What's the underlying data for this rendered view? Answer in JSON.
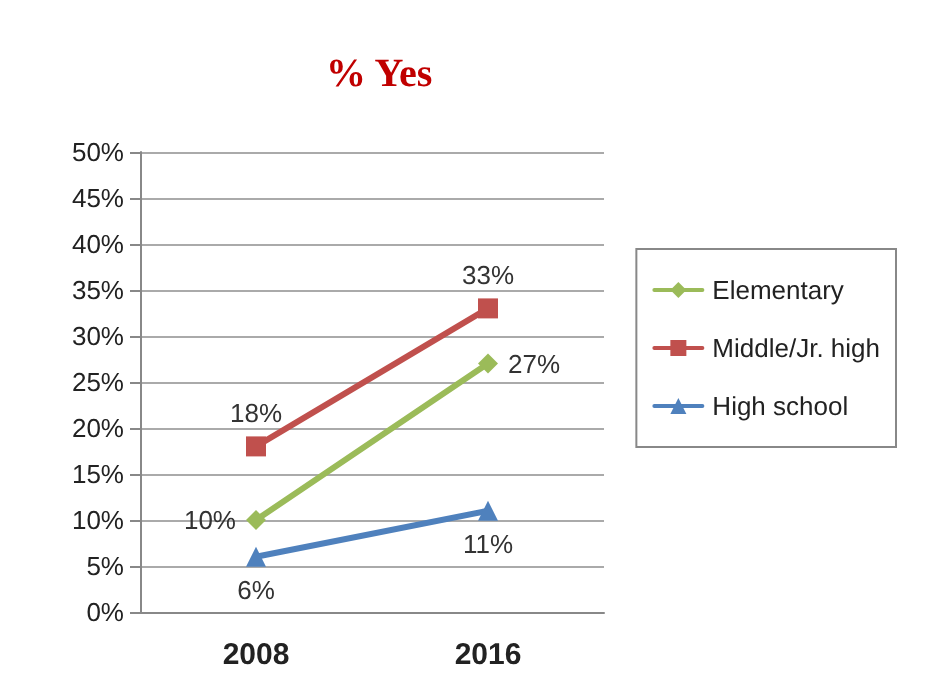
{
  "chart_data": {
    "type": "line",
    "title": "% Yes",
    "categories": [
      "2008",
      "2016"
    ],
    "series": [
      {
        "name": "Elementary",
        "color": "#9bbb59",
        "marker": "diamond",
        "values": [
          10,
          27
        ],
        "value_labels": [
          "10%",
          "27%"
        ]
      },
      {
        "name": "Middle/Jr. high",
        "color": "#c0504d",
        "marker": "square",
        "values": [
          18,
          33
        ],
        "value_labels": [
          "18%",
          "33%"
        ]
      },
      {
        "name": "High school",
        "color": "#4f81bd",
        "marker": "triangle",
        "values": [
          6,
          11
        ],
        "value_labels": [
          "6%",
          "11%"
        ]
      }
    ],
    "ylim": [
      0,
      50
    ],
    "yticks": [
      {
        "value": 0,
        "label": "0%"
      },
      {
        "value": 5,
        "label": "5%"
      },
      {
        "value": 10,
        "label": "10%"
      },
      {
        "value": 15,
        "label": "15%"
      },
      {
        "value": 20,
        "label": "20%"
      },
      {
        "value": 25,
        "label": "25%"
      },
      {
        "value": 30,
        "label": "30%"
      },
      {
        "value": 35,
        "label": "35%"
      },
      {
        "value": 40,
        "label": "40%"
      },
      {
        "value": 45,
        "label": "45%"
      },
      {
        "value": 50,
        "label": "50%"
      }
    ],
    "grid": "y",
    "legend": "right"
  }
}
